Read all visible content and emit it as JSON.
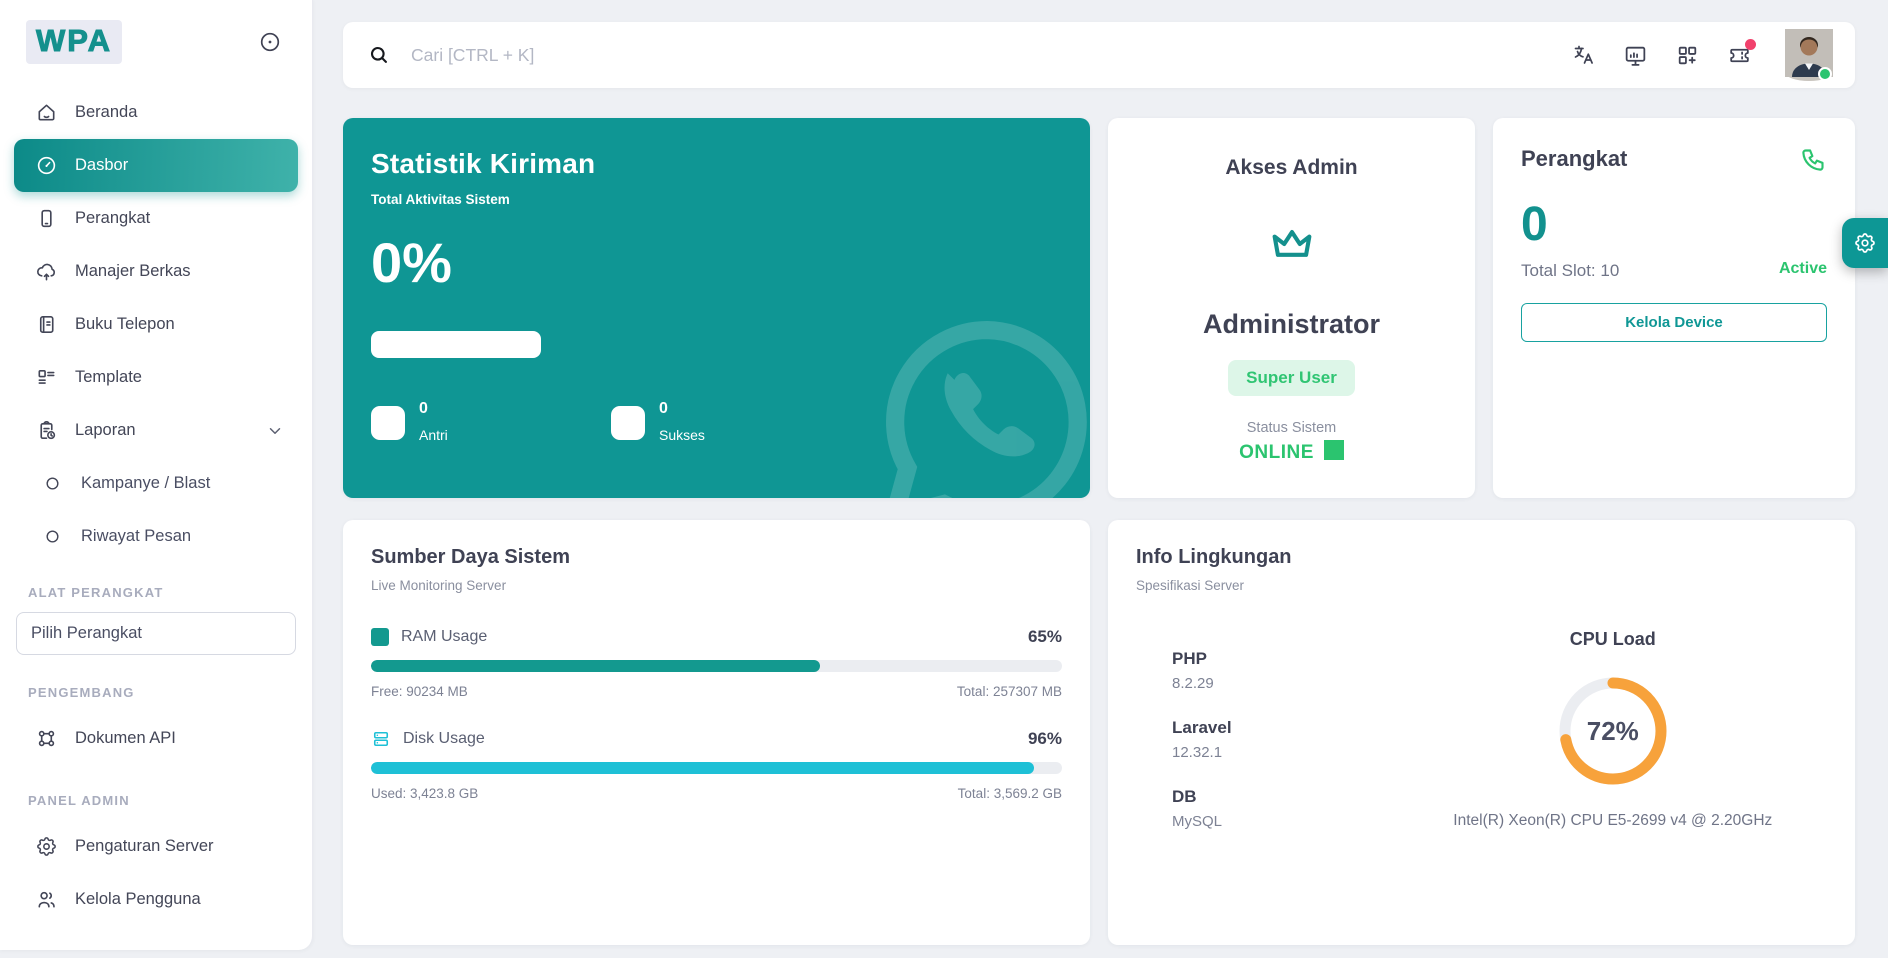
{
  "app": {
    "logo_text": "WPA"
  },
  "sidebar": {
    "items": [
      {
        "icon": "home-icon",
        "label": "Beranda"
      },
      {
        "icon": "gauge-icon",
        "label": "Dasbor"
      },
      {
        "icon": "smartphone-icon",
        "label": "Perangkat"
      },
      {
        "icon": "cloud-upload-icon",
        "label": "Manajer Berkas"
      },
      {
        "icon": "address-book-icon",
        "label": "Buku Telepon"
      },
      {
        "icon": "template-icon",
        "label": "Template"
      },
      {
        "icon": "report-icon",
        "label": "Laporan"
      },
      {
        "icon": "circle-icon",
        "label": "Kampanye / Blast"
      },
      {
        "icon": "circle-icon",
        "label": "Riwayat Pesan"
      },
      {
        "icon": "api-icon",
        "label": "Dokumen API"
      },
      {
        "icon": "gear-icon",
        "label": "Pengaturan Server"
      },
      {
        "icon": "users-icon",
        "label": "Kelola Pengguna"
      }
    ],
    "section_device_tools": "ALAT PERANGKAT",
    "device_select": "Pilih Perangkat",
    "section_developer": "PENGEMBANG",
    "section_admin": "PANEL ADMIN"
  },
  "header": {
    "search_placeholder": "Cari [CTRL + K]",
    "icons": [
      "translate-icon",
      "monitor-analytics-icon",
      "apps-grid-add-icon",
      "ticket-icon",
      "avatar"
    ]
  },
  "stats_card": {
    "title": "Statistik Kiriman",
    "subtitle": "Total Aktivitas Sistem",
    "percent": "0%",
    "metrics": [
      {
        "value": "0",
        "label": "Antri"
      },
      {
        "value": "0",
        "label": "Sukses"
      }
    ]
  },
  "admin_card": {
    "title": "Akses Admin",
    "role": "Administrator",
    "badge": "Super User",
    "status_label": "Status Sistem",
    "status_value": "ONLINE"
  },
  "device_card": {
    "title": "Perangkat",
    "count": "0",
    "active_label": "Active",
    "total_slot": "Total Slot: 10",
    "button": "Kelola Device"
  },
  "resources_card": {
    "title": "Sumber Daya Sistem",
    "subtitle": "Live Monitoring Server",
    "ram": {
      "label": "RAM Usage",
      "percent": "65%",
      "value": 65,
      "free": "Free: 90234 MB",
      "total": "Total: 257307 MB"
    },
    "disk": {
      "label": "Disk Usage",
      "percent": "96%",
      "value": 96,
      "used": "Used: 3,423.8 GB",
      "total": "Total: 3,569.2 GB"
    }
  },
  "env_card": {
    "title": "Info Lingkungan",
    "subtitle": "Spesifikasi Server",
    "specs": [
      {
        "label": "PHP",
        "value": "8.2.29"
      },
      {
        "label": "Laravel",
        "value": "12.32.1"
      },
      {
        "label": "DB",
        "value": "MySQL"
      }
    ],
    "cpu": {
      "title": "CPU Load",
      "percent": "72%",
      "value": 72,
      "name": "Intel(R) Xeon(R) CPU E5-2699 v4 @ 2.20GHz"
    }
  },
  "colors": {
    "primary_teal": "#0F9694",
    "active_gradient": [
      "#0C8A88",
      "#3FB2AA"
    ],
    "green": "#2BC46F",
    "cyan": "#1EC0D6",
    "ram_teal": "#13998F",
    "orange": "#F7A23B",
    "notification_red": "#F1416C",
    "badge_bg": "#DDF6E8",
    "track_gray": "#EBEDF1"
  }
}
